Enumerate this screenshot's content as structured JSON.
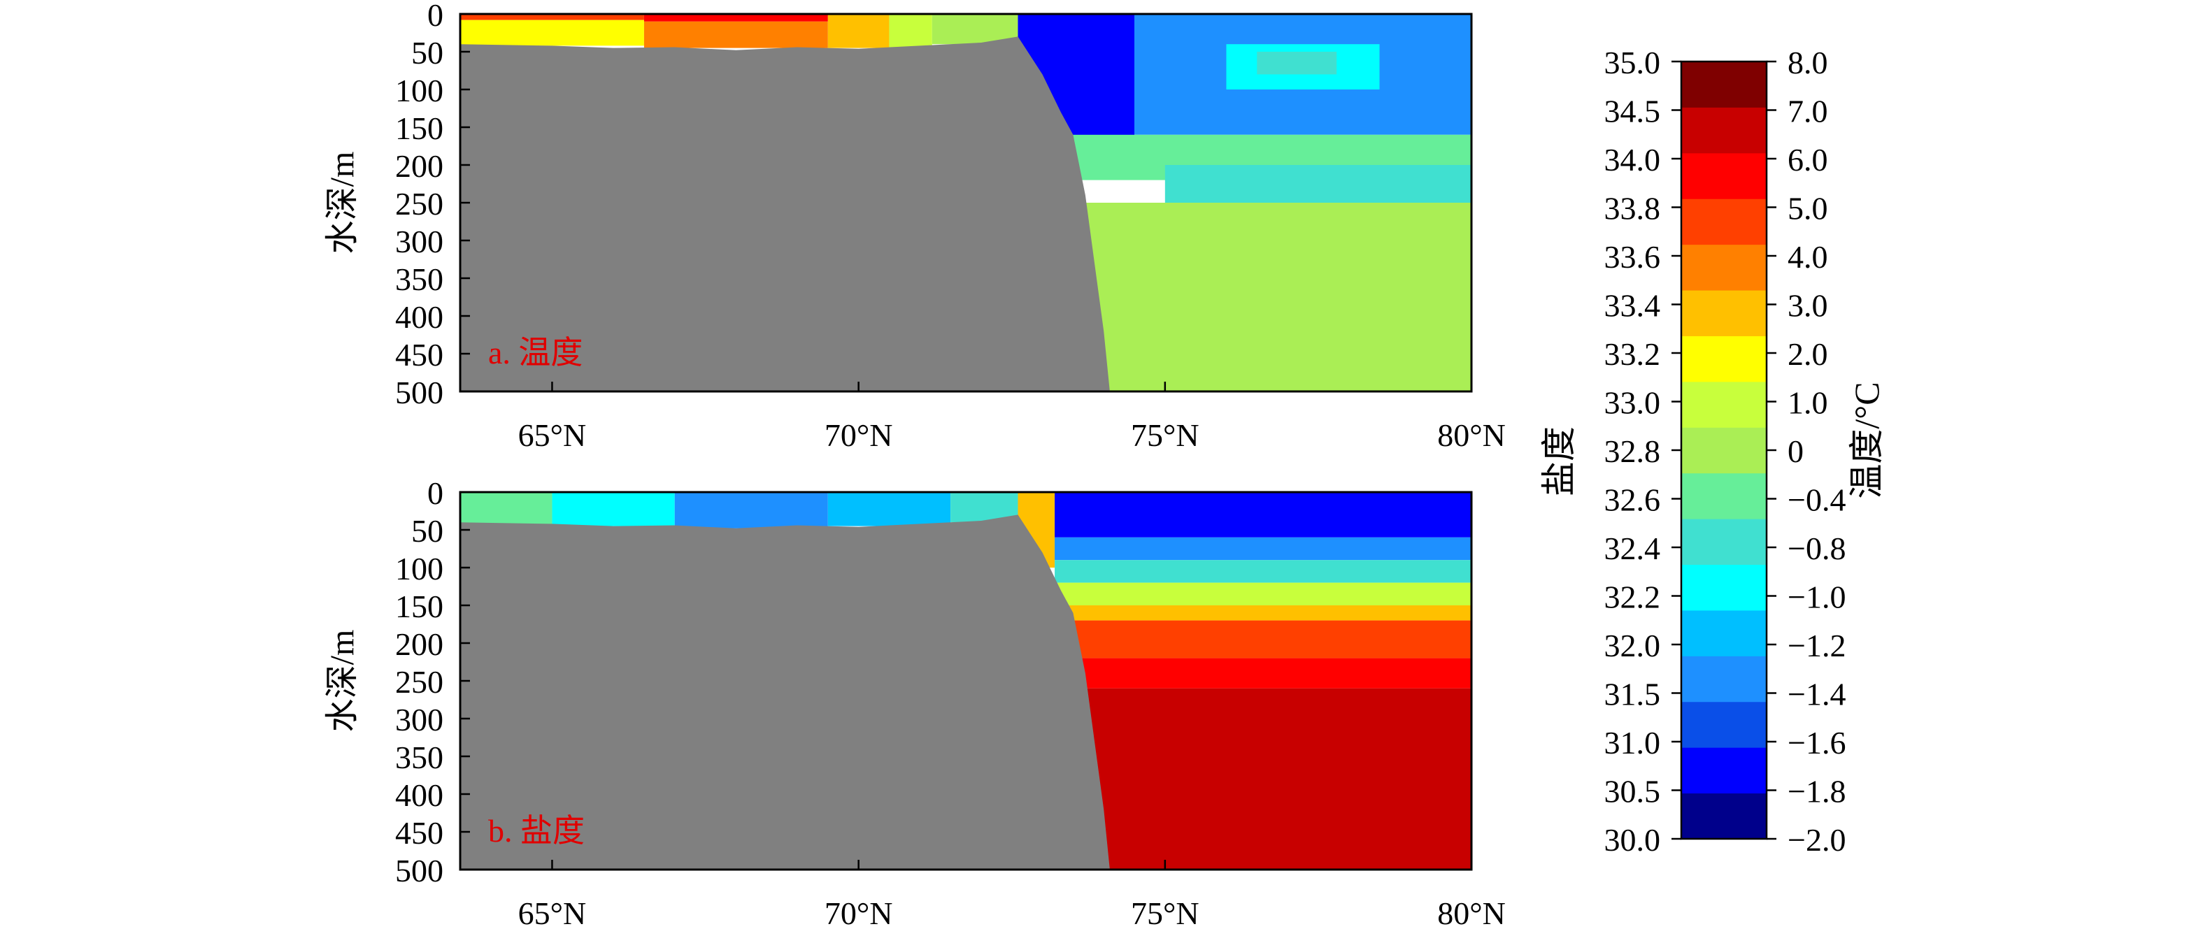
{
  "chart_data": [
    {
      "type": "heatmap",
      "panel_label": "a. 温度",
      "ylabel": "水深/m",
      "ylim": [
        500,
        0
      ],
      "yticks": [
        "0",
        "50",
        "100",
        "150",
        "200",
        "250",
        "300",
        "350",
        "400",
        "450",
        "500"
      ],
      "xlim": [
        63.5,
        80.0
      ],
      "xticks": [
        "65°N",
        "70°N",
        "75°N",
        "80°N"
      ],
      "xtick_values": [
        65,
        70,
        75,
        80
      ],
      "variable": "温度",
      "unit": "°C",
      "land_color": "#808080",
      "bottom_depth_profile": [
        {
          "lat": 63.5,
          "depth": 40
        },
        {
          "lat": 65.0,
          "depth": 42
        },
        {
          "lat": 66.0,
          "depth": 45
        },
        {
          "lat": 67.0,
          "depth": 44
        },
        {
          "lat": 68.0,
          "depth": 48
        },
        {
          "lat": 69.0,
          "depth": 44
        },
        {
          "lat": 70.0,
          "depth": 46
        },
        {
          "lat": 71.0,
          "depth": 42
        },
        {
          "lat": 72.0,
          "depth": 38
        },
        {
          "lat": 72.6,
          "depth": 30
        },
        {
          "lat": 73.0,
          "depth": 80
        },
        {
          "lat": 73.3,
          "depth": 130
        },
        {
          "lat": 73.5,
          "depth": 160
        },
        {
          "lat": 73.7,
          "depth": 240
        },
        {
          "lat": 73.85,
          "depth": 330
        },
        {
          "lat": 74.0,
          "depth": 420
        },
        {
          "lat": 74.1,
          "depth": 500
        }
      ],
      "cells": [
        {
          "lat0": 63.5,
          "lat1": 66.5,
          "z0": 0,
          "z1": 8,
          "value": 5.5
        },
        {
          "lat0": 63.5,
          "lat1": 66.5,
          "z0": 8,
          "z1": 42,
          "value": 2.5
        },
        {
          "lat0": 66.5,
          "lat1": 69.5,
          "z0": 0,
          "z1": 10,
          "value": 6.5
        },
        {
          "lat0": 66.5,
          "lat1": 69.5,
          "z0": 10,
          "z1": 45,
          "value": 4.5
        },
        {
          "lat0": 69.5,
          "lat1": 70.5,
          "z0": 0,
          "z1": 45,
          "value": 3.5
        },
        {
          "lat0": 70.5,
          "lat1": 71.2,
          "z0": 0,
          "z1": 45,
          "value": 1.5
        },
        {
          "lat0": 71.2,
          "lat1": 72.6,
          "z0": 0,
          "z1": 40,
          "value": 0.5
        },
        {
          "lat0": 72.6,
          "lat1": 74.5,
          "z0": 0,
          "z1": 170,
          "value": -1.7
        },
        {
          "lat0": 74.5,
          "lat1": 80.0,
          "z0": 0,
          "z1": 160,
          "value": -1.3
        },
        {
          "lat0": 76.0,
          "lat1": 78.5,
          "z0": 40,
          "z1": 100,
          "value": -0.9
        },
        {
          "lat0": 76.5,
          "lat1": 77.8,
          "z0": 50,
          "z1": 80,
          "value": -0.5
        },
        {
          "lat0": 73.0,
          "lat1": 80.0,
          "z0": 160,
          "z1": 220,
          "value": -0.2
        },
        {
          "lat0": 75.0,
          "lat1": 80.0,
          "z0": 200,
          "z1": 250,
          "value": -0.6
        },
        {
          "lat0": 73.0,
          "lat1": 80.0,
          "z0": 250,
          "z1": 500,
          "value": 0.5
        }
      ]
    },
    {
      "type": "heatmap",
      "panel_label": "b. 盐度",
      "ylabel": "水深/m",
      "ylim": [
        500,
        0
      ],
      "yticks": [
        "0",
        "50",
        "100",
        "150",
        "200",
        "250",
        "300",
        "350",
        "400",
        "450",
        "500"
      ],
      "xlim": [
        63.5,
        80.0
      ],
      "xticks": [
        "65°N",
        "70°N",
        "75°N",
        "80°N"
      ],
      "xtick_values": [
        65,
        70,
        75,
        80
      ],
      "variable": "盐度",
      "land_color": "#808080",
      "bottom_depth_profile": [
        {
          "lat": 63.5,
          "depth": 40
        },
        {
          "lat": 65.0,
          "depth": 42
        },
        {
          "lat": 66.0,
          "depth": 45
        },
        {
          "lat": 67.0,
          "depth": 44
        },
        {
          "lat": 68.0,
          "depth": 48
        },
        {
          "lat": 69.0,
          "depth": 44
        },
        {
          "lat": 70.0,
          "depth": 46
        },
        {
          "lat": 71.0,
          "depth": 42
        },
        {
          "lat": 72.0,
          "depth": 38
        },
        {
          "lat": 72.6,
          "depth": 30
        },
        {
          "lat": 73.0,
          "depth": 80
        },
        {
          "lat": 73.3,
          "depth": 130
        },
        {
          "lat": 73.5,
          "depth": 160
        },
        {
          "lat": 73.7,
          "depth": 240
        },
        {
          "lat": 73.85,
          "depth": 330
        },
        {
          "lat": 74.0,
          "depth": 420
        },
        {
          "lat": 74.1,
          "depth": 500
        }
      ],
      "cells": [
        {
          "lat0": 63.5,
          "lat1": 65.0,
          "z0": 0,
          "z1": 45,
          "value": 32.6
        },
        {
          "lat0": 65.0,
          "lat1": 67.0,
          "z0": 0,
          "z1": 45,
          "value": 32.3
        },
        {
          "lat0": 67.0,
          "lat1": 69.5,
          "z0": 0,
          "z1": 48,
          "value": 31.8
        },
        {
          "lat0": 69.5,
          "lat1": 71.5,
          "z0": 0,
          "z1": 45,
          "value": 32.1
        },
        {
          "lat0": 71.5,
          "lat1": 72.6,
          "z0": 0,
          "z1": 40,
          "value": 32.5
        },
        {
          "lat0": 72.6,
          "lat1": 73.2,
          "z0": 0,
          "z1": 100,
          "value": 33.5
        },
        {
          "lat0": 73.2,
          "lat1": 80.0,
          "z0": 0,
          "z1": 60,
          "value": 30.8
        },
        {
          "lat0": 73.2,
          "lat1": 80.0,
          "z0": 60,
          "z1": 90,
          "value": 31.8
        },
        {
          "lat0": 73.2,
          "lat1": 80.0,
          "z0": 90,
          "z1": 120,
          "value": 32.5
        },
        {
          "lat0": 73.2,
          "lat1": 80.0,
          "z0": 120,
          "z1": 150,
          "value": 33.1
        },
        {
          "lat0": 73.2,
          "lat1": 80.0,
          "z0": 150,
          "z1": 170,
          "value": 33.5
        },
        {
          "lat0": 73.2,
          "lat1": 80.0,
          "z0": 170,
          "z1": 220,
          "value": 33.9
        },
        {
          "lat0": 73.2,
          "lat1": 80.0,
          "z0": 220,
          "z1": 260,
          "value": 34.2
        },
        {
          "lat0": 73.2,
          "lat1": 80.0,
          "z0": 260,
          "z1": 500,
          "value": 34.8
        }
      ]
    }
  ],
  "colorbar": {
    "salinity_label": "盐度",
    "temperature_label": "温度/°C",
    "colors": [
      "#00008b",
      "#0000ff",
      "#0a4fe8",
      "#1e90ff",
      "#00bfff",
      "#00ffff",
      "#40e0d0",
      "#66ee99",
      "#aaee55",
      "#c8ff3c",
      "#ffff00",
      "#ffc000",
      "#ff8000",
      "#ff4000",
      "#ff0000",
      "#c80000",
      "#7f0000"
    ],
    "salinity_ticks": [
      "30.0",
      "30.5",
      "31.0",
      "31.5",
      "32.0",
      "32.2",
      "32.4",
      "32.6",
      "32.8",
      "33.0",
      "33.2",
      "33.4",
      "33.6",
      "33.8",
      "34.0",
      "34.5",
      "35.0"
    ],
    "temperature_ticks": [
      "−2.0",
      "−1.8",
      "−1.6",
      "−1.4",
      "−1.2",
      "−1.0",
      "−0.8",
      "−0.4",
      "0",
      "1.0",
      "2.0",
      "3.0",
      "4.0",
      "5.0",
      "6.0",
      "7.0",
      "8.0"
    ],
    "salinity_levels": [
      30.0,
      30.5,
      31.0,
      31.5,
      32.0,
      32.2,
      32.4,
      32.6,
      32.8,
      33.0,
      33.2,
      33.4,
      33.6,
      33.8,
      34.0,
      34.5,
      35.0
    ],
    "temperature_levels": [
      -2.0,
      -1.8,
      -1.6,
      -1.4,
      -1.2,
      -1.0,
      -0.8,
      -0.4,
      0,
      1.0,
      2.0,
      3.0,
      4.0,
      5.0,
      6.0,
      7.0,
      8.0
    ]
  }
}
